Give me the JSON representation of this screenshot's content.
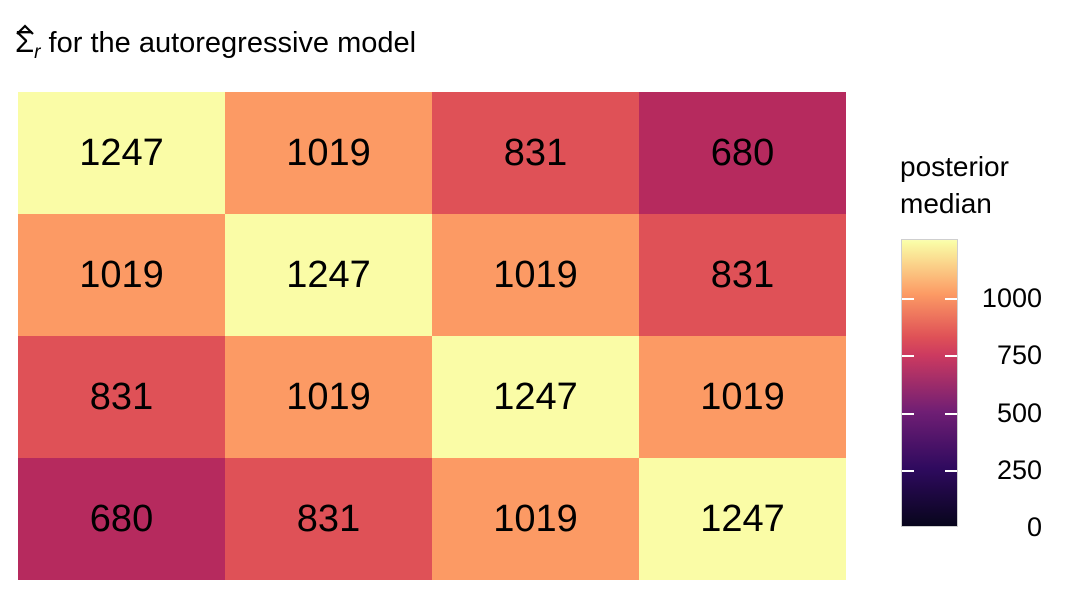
{
  "title": {
    "sigma": "Σ",
    "hat_glyph": "^",
    "subscript": "r",
    "rest": " for the autoregressive model"
  },
  "legend": {
    "title_line1": "posterior",
    "title_line2": "median"
  },
  "chart_data": {
    "type": "heatmap",
    "title": "Σ̂_r for the autoregressive model",
    "legend_title": "posterior median",
    "rows": 4,
    "cols": 4,
    "values": [
      [
        1247,
        1019,
        831,
        680
      ],
      [
        1019,
        1247,
        1019,
        831
      ],
      [
        831,
        1019,
        1247,
        1019
      ],
      [
        680,
        831,
        1019,
        1247
      ]
    ],
    "cell_colors": {
      "1247": "#FAFCA6",
      "1019": "#FC9A64",
      "831": "#DF5157",
      "680": "#B62A5E"
    },
    "colorbar": {
      "domain": [
        0,
        1258
      ],
      "tick_values": [
        1000,
        750,
        500,
        250,
        0
      ],
      "tick_labels": [
        "1000",
        "750",
        "500",
        "250",
        "0"
      ],
      "gradient_stops": [
        {
          "value": 0,
          "color": "#08051C"
        },
        {
          "value": 250,
          "color": "#2E0A5E"
        },
        {
          "value": 500,
          "color": "#6F1E74"
        },
        {
          "value": 750,
          "color": "#CC3A60"
        },
        {
          "value": 831,
          "color": "#DF5157"
        },
        {
          "value": 1019,
          "color": "#FC9A64"
        },
        {
          "value": 1247,
          "color": "#FAFCA6"
        },
        {
          "value": 1258,
          "color": "#FBFDB2"
        }
      ]
    }
  }
}
